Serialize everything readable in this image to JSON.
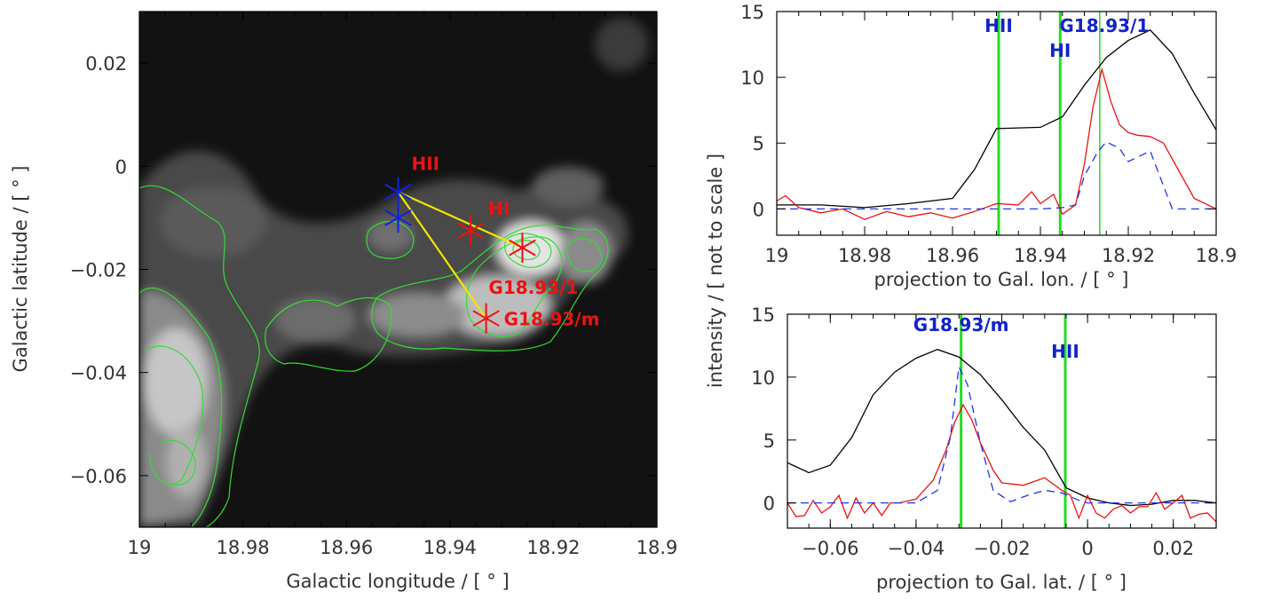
{
  "chart_data": [
    {
      "id": "map",
      "type": "heatmap",
      "xlabel": "Galactic longitude / [ ° ]",
      "ylabel": "Galactic latitude / [ ° ]",
      "xlim": [
        19,
        18.9
      ],
      "ylim": [
        -0.07,
        0.03
      ],
      "xticks": [
        "19",
        "18.98",
        "18.96",
        "18.94",
        "18.92",
        "18.9"
      ],
      "xtick_values": [
        19,
        18.98,
        18.96,
        18.94,
        18.92,
        18.9
      ],
      "yticks": [
        "0.02",
        "0",
        "−0.02",
        "−0.04",
        "−0.06"
      ],
      "ytick_values": [
        0.02,
        0,
        -0.02,
        -0.04,
        -0.06
      ],
      "colors": {
        "contour": "#33dd33",
        "red_marker": "#ee1111",
        "blue_marker": "#1122dd",
        "line": "#f2e600"
      },
      "markers": [
        {
          "label": "HII",
          "lon": 18.95,
          "lat": -0.005,
          "color": "blue"
        },
        {
          "label": "",
          "lon": 18.95,
          "lat": -0.01,
          "color": "blue"
        },
        {
          "label": "HI",
          "lon": 18.936,
          "lat": -0.0125,
          "color": "red"
        },
        {
          "label": "G18.93/1",
          "lon": 18.926,
          "lat": -0.0158,
          "color": "red"
        },
        {
          "label": "G18.93/m",
          "lon": 18.933,
          "lat": -0.0295,
          "color": "red"
        }
      ],
      "lines": [
        {
          "from": [
            18.95,
            -0.005
          ],
          "to": [
            18.926,
            -0.0158
          ]
        },
        {
          "from": [
            18.95,
            -0.005
          ],
          "to": [
            18.933,
            -0.0295
          ]
        }
      ]
    },
    {
      "id": "lon-profile",
      "type": "line",
      "xlabel": "projection to Gal. lon. / [ ° ]",
      "xlim": [
        19,
        18.9
      ],
      "ylim": [
        -2,
        15
      ],
      "xticks": [
        "19",
        "18.98",
        "18.96",
        "18.94",
        "18.92",
        "18.9"
      ],
      "xtick_values": [
        19,
        18.98,
        18.96,
        18.94,
        18.92,
        18.9
      ],
      "yticks": [
        "0",
        "5",
        "10",
        "15"
      ],
      "ytick_values": [
        0,
        5,
        10,
        15
      ],
      "vlines": [
        {
          "label": "HII",
          "x": 18.9495,
          "color": "#22dd22"
        },
        {
          "label": "HI",
          "x": 18.9355,
          "color": "#22dd22"
        },
        {
          "label": "G18.93/1",
          "x": 18.9265,
          "color": "#22dd22"
        }
      ],
      "series": [
        {
          "color": "#000000",
          "style": "solid",
          "x": [
            19,
            18.99,
            18.98,
            18.97,
            18.96,
            18.955,
            18.95,
            18.94,
            18.935,
            18.93,
            18.925,
            18.92,
            18.915,
            18.91,
            18.905,
            18.9
          ],
          "y": [
            0.3,
            0.3,
            0.1,
            0.4,
            0.8,
            3.0,
            6.1,
            6.2,
            7.0,
            9.4,
            11.5,
            12.8,
            13.6,
            11.8,
            8.8,
            6.0
          ]
        },
        {
          "color": "#ee1111",
          "style": "solid",
          "x": [
            19,
            18.998,
            18.995,
            18.99,
            18.985,
            18.98,
            18.975,
            18.97,
            18.965,
            18.96,
            18.955,
            18.95,
            18.945,
            18.942,
            18.94,
            18.937,
            18.935,
            18.932,
            18.93,
            18.928,
            18.926,
            18.924,
            18.922,
            18.92,
            18.918,
            18.915,
            18.912,
            18.91,
            18.905,
            18.9
          ],
          "y": [
            0.6,
            1.0,
            0.1,
            -0.3,
            0.0,
            -0.8,
            -0.2,
            -0.6,
            -0.3,
            -0.7,
            -0.2,
            0.4,
            0.3,
            1.3,
            0.4,
            1.1,
            -0.4,
            0.3,
            3.4,
            7.8,
            10.6,
            8.2,
            6.4,
            5.8,
            5.6,
            5.5,
            5.0,
            3.8,
            0.8,
            0.0
          ]
        },
        {
          "color": "#2233ee",
          "style": "dashed",
          "x": [
            19,
            18.99,
            18.98,
            18.97,
            18.96,
            18.95,
            18.94,
            18.935,
            18.932,
            18.93,
            18.927,
            18.925,
            18.922,
            18.92,
            18.915,
            18.91,
            18.905,
            18.9
          ],
          "y": [
            0.0,
            0.0,
            0.0,
            0.0,
            0.0,
            0.0,
            0.0,
            0.1,
            0.3,
            2.5,
            4.3,
            5.1,
            4.6,
            3.6,
            4.4,
            0.0,
            0.0,
            0.0
          ]
        }
      ]
    },
    {
      "id": "lat-profile",
      "type": "line",
      "xlabel": "projection to Gal. lat. / [ ° ]",
      "xlim": [
        -0.07,
        0.03
      ],
      "ylim": [
        -2,
        15
      ],
      "xticks": [
        "−0.06",
        "−0.04",
        "−0.02",
        "0",
        "0.02"
      ],
      "xtick_values": [
        -0.06,
        -0.04,
        -0.02,
        0,
        0.02
      ],
      "yticks": [
        "0",
        "5",
        "10",
        "15"
      ],
      "ytick_values": [
        0,
        5,
        10,
        15
      ],
      "vlines": [
        {
          "label": "G18.93/m",
          "x": -0.0295,
          "color": "#22dd22"
        },
        {
          "label": "HII",
          "x": -0.0052,
          "color": "#22dd22"
        }
      ],
      "series": [
        {
          "color": "#000000",
          "style": "solid",
          "x": [
            -0.07,
            -0.065,
            -0.06,
            -0.055,
            -0.05,
            -0.045,
            -0.04,
            -0.035,
            -0.03,
            -0.025,
            -0.02,
            -0.015,
            -0.01,
            -0.005,
            0,
            0.005,
            0.01,
            0.015,
            0.02,
            0.025,
            0.03
          ],
          "y": [
            3.2,
            2.4,
            3.0,
            5.2,
            8.6,
            10.4,
            11.5,
            12.2,
            11.6,
            10.2,
            8.2,
            6.0,
            4.2,
            1.2,
            0.4,
            0.0,
            -0.2,
            -0.1,
            0.2,
            0.2,
            0.0
          ]
        },
        {
          "color": "#ee1111",
          "style": "solid",
          "x": [
            -0.07,
            -0.068,
            -0.066,
            -0.064,
            -0.062,
            -0.06,
            -0.058,
            -0.056,
            -0.054,
            -0.052,
            -0.05,
            -0.048,
            -0.046,
            -0.044,
            -0.04,
            -0.036,
            -0.033,
            -0.031,
            -0.029,
            -0.027,
            -0.025,
            -0.022,
            -0.02,
            -0.015,
            -0.01,
            -0.006,
            -0.004,
            -0.002,
            0,
            0.002,
            0.004,
            0.006,
            0.008,
            0.01,
            0.012,
            0.014,
            0.016,
            0.018,
            0.02,
            0.022,
            0.024,
            0.026,
            0.028,
            0.03
          ],
          "y": [
            0.0,
            -1.1,
            -1.0,
            0.2,
            -0.8,
            -0.3,
            0.6,
            -1.2,
            0.4,
            -0.8,
            0.0,
            -1.0,
            0.0,
            0.0,
            0.3,
            1.8,
            4.2,
            6.4,
            7.8,
            6.6,
            4.8,
            2.6,
            1.6,
            1.4,
            2.0,
            1.0,
            0.6,
            -1.2,
            0.6,
            -0.8,
            -1.2,
            -0.5,
            -0.2,
            -0.8,
            -0.3,
            -0.3,
            0.8,
            -0.5,
            0.0,
            0.6,
            -1.2,
            -0.9,
            -0.8,
            -1.5
          ]
        },
        {
          "color": "#2233ee",
          "style": "dashed",
          "x": [
            -0.07,
            -0.05,
            -0.04,
            -0.035,
            -0.032,
            -0.03,
            -0.028,
            -0.025,
            -0.022,
            -0.018,
            -0.014,
            -0.01,
            -0.006,
            -0.002,
            0,
            0.005,
            0.01,
            0.02,
            0.03
          ],
          "y": [
            0.0,
            0.0,
            0.0,
            1.0,
            5.2,
            10.8,
            9.4,
            4.8,
            1.0,
            0.1,
            0.6,
            1.0,
            0.8,
            0.2,
            0.0,
            0.0,
            0.0,
            0.0,
            0.0
          ]
        }
      ]
    }
  ],
  "shared_ylabel": "intensity / [ not to scale ]"
}
